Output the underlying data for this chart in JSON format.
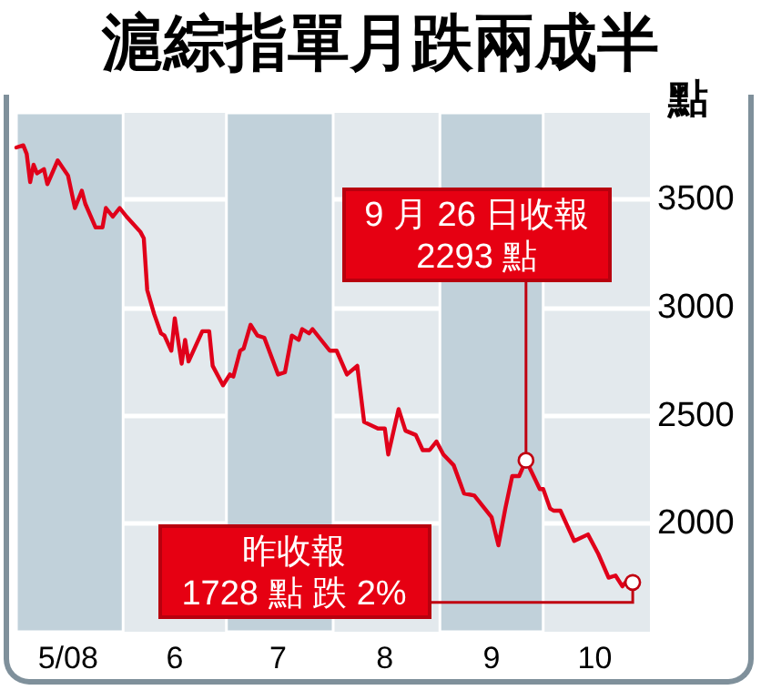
{
  "chart_data": {
    "type": "line",
    "title": "滬綜指單月跌兩成半",
    "ylabel": "點",
    "x": [
      "2008-05-01",
      "2008-05-03",
      "2008-05-04",
      "2008-05-05",
      "2008-05-06",
      "2008-05-07",
      "2008-05-09",
      "2008-05-10",
      "2008-05-13",
      "2008-05-16",
      "2008-05-18",
      "2008-05-20",
      "2008-05-21",
      "2008-05-24",
      "2008-05-26",
      "2008-05-27",
      "2008-05-29",
      "2008-05-31",
      "2008-06-02",
      "2008-06-06",
      "2008-06-07",
      "2008-06-08",
      "2008-06-10",
      "2008-06-12",
      "2008-06-13",
      "2008-06-15",
      "2008-06-16",
      "2008-06-18",
      "2008-06-19",
      "2008-06-20",
      "2008-06-24",
      "2008-06-26",
      "2008-06-27",
      "2008-06-30",
      "2008-07-02",
      "2008-07-03",
      "2008-07-05",
      "2008-07-06",
      "2008-07-08",
      "2008-07-10",
      "2008-07-12",
      "2008-07-16",
      "2008-07-18",
      "2008-07-20",
      "2008-07-22",
      "2008-07-23",
      "2008-07-25",
      "2008-07-26",
      "2008-07-31",
      "2008-08-02",
      "2008-08-05",
      "2008-08-08",
      "2008-08-10",
      "2008-08-14",
      "2008-08-16",
      "2008-08-17",
      "2008-08-20",
      "2008-08-22",
      "2008-08-25",
      "2008-08-27",
      "2008-08-29",
      "2008-08-31",
      "2008-09-02",
      "2008-09-05",
      "2008-09-08",
      "2008-09-11",
      "2008-09-14",
      "2008-09-16",
      "2008-09-18",
      "2008-09-20",
      "2008-09-22",
      "2008-09-24",
      "2008-09-26",
      "2008-09-30",
      "2008-10-01",
      "2008-10-03",
      "2008-10-04",
      "2008-10-06",
      "2008-10-10",
      "2008-10-14",
      "2008-10-17",
      "2008-10-20",
      "2008-10-22",
      "2008-10-24",
      "2008-10-26",
      "2008-10-27"
    ],
    "series": [
      {
        "color": "#e0001a",
        "values": [
          3740,
          3750,
          3710,
          3580,
          3660,
          3620,
          3640,
          3570,
          3680,
          3610,
          3460,
          3540,
          3480,
          3370,
          3370,
          3460,
          3420,
          3460,
          3420,
          3350,
          3320,
          3080,
          2970,
          2880,
          2870,
          2800,
          2950,
          2740,
          2850,
          2750,
          2890,
          2890,
          2730,
          2640,
          2690,
          2680,
          2800,
          2810,
          2920,
          2870,
          2860,
          2690,
          2700,
          2870,
          2850,
          2900,
          2880,
          2900,
          2800,
          2800,
          2690,
          2730,
          2470,
          2440,
          2440,
          2320,
          2530,
          2430,
          2410,
          2340,
          2340,
          2380,
          2320,
          2270,
          2140,
          2130,
          2070,
          2030,
          1900,
          2070,
          2220,
          2220,
          2293,
          2160,
          2160,
          2070,
          2060,
          2060,
          1920,
          1950,
          1860,
          1750,
          1760,
          1710,
          1750,
          1728
        ]
      }
    ],
    "xlim": [
      "2008-05-01",
      "2008-11-01"
    ],
    "xticks": [
      {
        "value": "2008-05-16",
        "label": "5/08"
      },
      {
        "value": "2008-06-16",
        "label": "6"
      },
      {
        "value": "2008-07-16",
        "label": "7"
      },
      {
        "value": "2008-08-16",
        "label": "8"
      },
      {
        "value": "2008-09-16",
        "label": "9"
      },
      {
        "value": "2008-10-16",
        "label": "10"
      }
    ],
    "ylim": [
      1500,
      3900
    ],
    "yticks": [
      2000,
      2500,
      3000,
      3500
    ],
    "bands": [
      {
        "axis": "x",
        "from": "2008-05-01",
        "to": "2008-06-01",
        "color": "#c1d1da"
      },
      {
        "axis": "x",
        "from": "2008-07-01",
        "to": "2008-08-01",
        "color": "#c1d1da"
      },
      {
        "axis": "x",
        "from": "2008-09-01",
        "to": "2008-10-01",
        "color": "#c1d1da"
      }
    ],
    "annotations": [
      {
        "text": "9 月 26 日收報\n2293 點",
        "x": "2008-09-26",
        "y": 2293
      },
      {
        "text": "昨收報\n1728 點 跌 2%",
        "x": "2008-10-27",
        "y": 1728
      }
    ],
    "grid": "y",
    "marker": "none",
    "line_style": "solid"
  }
}
